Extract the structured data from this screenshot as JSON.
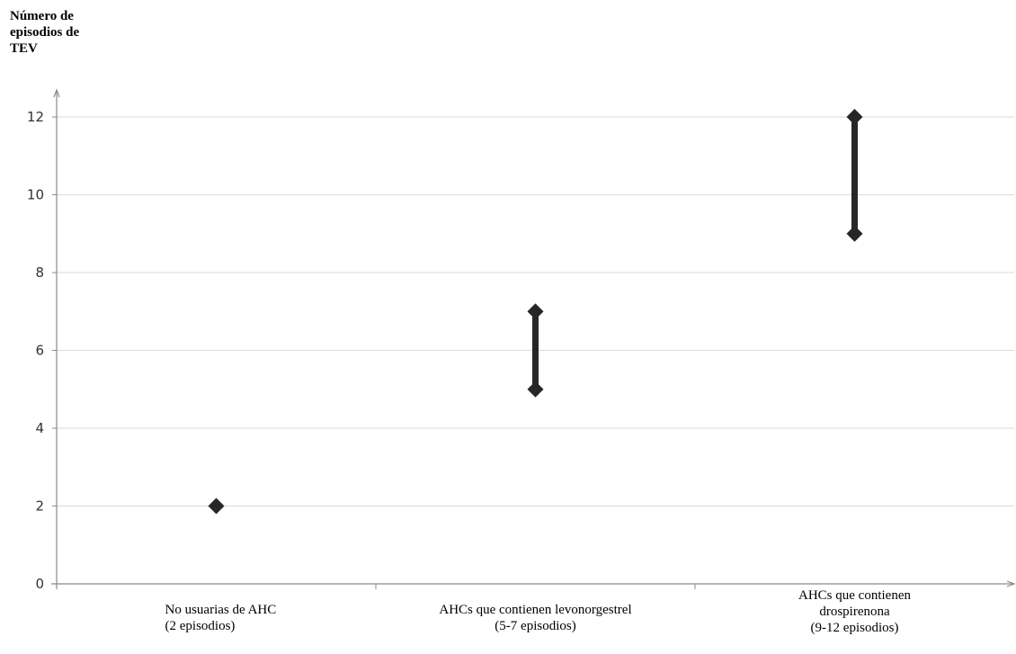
{
  "chart_data": {
    "type": "range",
    "ylabel": [
      "Número de",
      "episodios de",
      "TEV"
    ],
    "ylim": [
      0,
      12
    ],
    "yticks": [
      0,
      2,
      4,
      6,
      8,
      10,
      12
    ],
    "grid": true,
    "categories": [
      {
        "label_lines": [
          "No usuarias de AHC",
          "(2 episodios)"
        ],
        "low": 2,
        "high": 2
      },
      {
        "label_lines": [
          "AHCs que contienen levonorgestrel",
          "(5-7 episodios)"
        ],
        "low": 5,
        "high": 7
      },
      {
        "label_lines": [
          "AHCs que contienen",
          "drospirenona",
          "(9-12 episodios)"
        ],
        "low": 9,
        "high": 12
      }
    ]
  }
}
